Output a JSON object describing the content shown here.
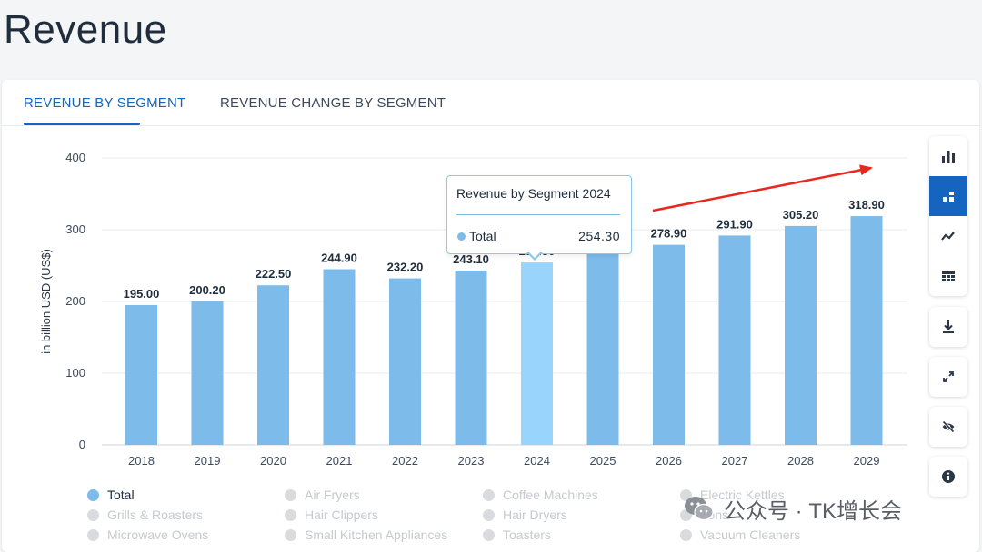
{
  "page": {
    "title": "Revenue"
  },
  "tabs": [
    {
      "label": "REVENUE BY SEGMENT",
      "active": true
    },
    {
      "label": "REVENUE CHANGE BY SEGMENT",
      "active": false
    }
  ],
  "toolbar": {
    "group1": [
      {
        "icon": "bar-chart-icon",
        "active": false
      },
      {
        "icon": "stacked-bar-icon",
        "active": true
      },
      {
        "icon": "line-chart-icon",
        "active": false
      },
      {
        "icon": "table-grid-icon",
        "active": false
      }
    ],
    "download": {
      "icon": "download-icon"
    },
    "fullscreen": {
      "icon": "expand-icon"
    },
    "hide": {
      "icon": "eye-slash-icon"
    },
    "info": {
      "icon": "info-icon"
    }
  },
  "tooltip": {
    "title": "Revenue by Segment 2024",
    "series": "Total",
    "value": "254.30"
  },
  "chart_data": {
    "type": "bar",
    "ylabel": "in billion USD (US$)",
    "ylim": [
      0,
      400
    ],
    "yticks": [
      0,
      100,
      200,
      300,
      400
    ],
    "categories": [
      "2018",
      "2019",
      "2020",
      "2021",
      "2022",
      "2023",
      "2024",
      "2025",
      "2026",
      "2027",
      "2028",
      "2029"
    ],
    "series": [
      {
        "name": "Total",
        "values": [
          195.0,
          200.2,
          222.5,
          244.9,
          232.2,
          243.1,
          254.3,
          266.5,
          278.9,
          291.9,
          305.2,
          318.9
        ],
        "labels": [
          "195.00",
          "200.20",
          "222.50",
          "244.90",
          "232.20",
          "243.10",
          "254.30",
          "",
          "278.90",
          "291.90",
          "305.20",
          "318.90"
        ]
      }
    ],
    "highlight_index": 6,
    "grid": true,
    "colors": {
      "bar": "#7dbbeb",
      "bar_highlight": "#98d4fb",
      "arrow": "#e8281e"
    }
  },
  "legend": [
    {
      "label": "Total",
      "on": true
    },
    {
      "label": "Air Fryers",
      "on": false
    },
    {
      "label": "Coffee Machines",
      "on": false
    },
    {
      "label": "Electric Kettles",
      "on": false
    },
    {
      "label": "Grills & Roasters",
      "on": false
    },
    {
      "label": "Hair Clippers",
      "on": false
    },
    {
      "label": "Hair Dryers",
      "on": false
    },
    {
      "label": "Irons",
      "on": false
    },
    {
      "label": "Microwave Ovens",
      "on": false
    },
    {
      "label": "Small Kitchen Appliances",
      "on": false
    },
    {
      "label": "Toasters",
      "on": false
    },
    {
      "label": "Vacuum Cleaners",
      "on": false
    }
  ],
  "watermark": {
    "text": "公众号 · TK增长会"
  }
}
